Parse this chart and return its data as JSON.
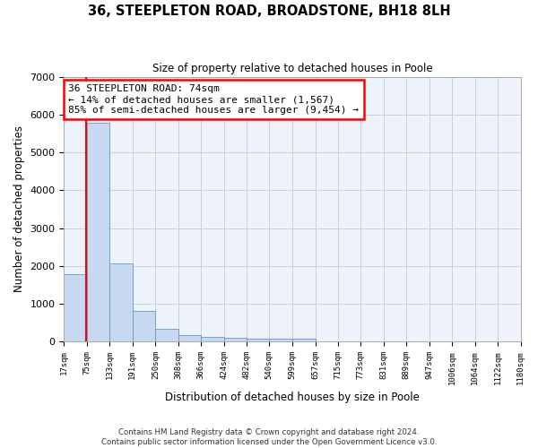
{
  "title": "36, STEEPLETON ROAD, BROADSTONE, BH18 8LH",
  "subtitle": "Size of property relative to detached houses in Poole",
  "xlabel": "Distribution of detached houses by size in Poole",
  "ylabel": "Number of detached properties",
  "bar_color": "#c6d9f0",
  "bar_edge_color": "#6699cc",
  "grid_color": "#c8d0e0",
  "background_color": "#eef2fa",
  "annotation_line1": "36 STEEPLETON ROAD: 74sqm",
  "annotation_line2": "← 14% of detached houses are smaller (1,567)",
  "annotation_line3": "85% of semi-detached houses are larger (9,454) →",
  "annotation_box_color": "white",
  "annotation_border_color": "red",
  "property_line_x": 74,
  "property_line_color": "red",
  "bins": [
    17,
    75,
    133,
    191,
    250,
    308,
    366,
    424,
    482,
    540,
    599,
    657,
    715,
    773,
    831,
    889,
    947,
    1006,
    1064,
    1122,
    1180
  ],
  "bar_heights": [
    1780,
    5780,
    2060,
    820,
    340,
    185,
    115,
    95,
    80,
    70,
    75,
    0,
    0,
    0,
    0,
    0,
    0,
    0,
    0,
    0
  ],
  "ylim": [
    0,
    7000
  ],
  "xlim": [
    17,
    1180
  ],
  "bin_labels": [
    "17sqm",
    "75sqm",
    "133sqm",
    "191sqm",
    "250sqm",
    "308sqm",
    "366sqm",
    "424sqm",
    "482sqm",
    "540sqm",
    "599sqm",
    "657sqm",
    "715sqm",
    "773sqm",
    "831sqm",
    "889sqm",
    "947sqm",
    "1006sqm",
    "1064sqm",
    "1122sqm",
    "1180sqm"
  ],
  "footer_line1": "Contains HM Land Registry data © Crown copyright and database right 2024.",
  "footer_line2": "Contains public sector information licensed under the Open Government Licence v3.0."
}
